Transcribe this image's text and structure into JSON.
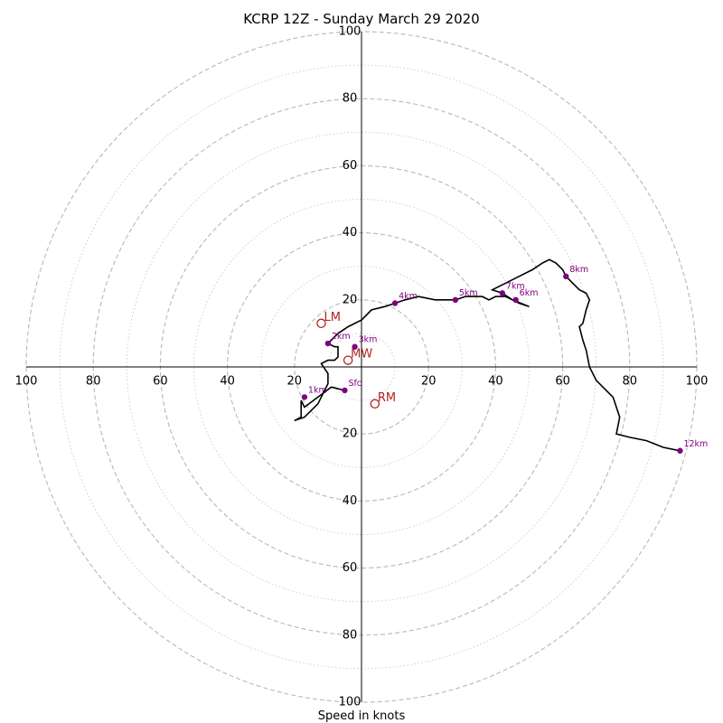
{
  "chart_data": {
    "type": "scatter",
    "subtype": "hodograph",
    "title": "KCRP 12Z - Sunday March 29 2020",
    "xlabel": "Speed in knots",
    "ylabel": "",
    "xlim": [
      -100,
      100
    ],
    "ylim": [
      -100,
      100
    ],
    "rings": {
      "major": [
        20,
        40,
        60,
        80,
        100
      ],
      "minor": [
        10,
        30,
        50,
        70,
        90
      ],
      "style": "dashed gray"
    },
    "tick_labels": {
      "x_left": [
        "100",
        "80",
        "60",
        "40",
        "20"
      ],
      "x_right": [
        "20",
        "40",
        "60",
        "80",
        "100"
      ],
      "y_up": [
        "20",
        "40",
        "60",
        "80",
        "100"
      ],
      "y_down": [
        "20",
        "40",
        "60",
        "80",
        "100"
      ]
    },
    "trace": {
      "color": "#000000",
      "points": [
        [
          -5,
          -7
        ],
        [
          -9,
          -6
        ],
        [
          -13,
          -9
        ],
        [
          -17,
          -12
        ],
        [
          -18,
          -10
        ],
        [
          -18,
          -15
        ],
        [
          -20,
          -16
        ],
        [
          -17,
          -15
        ],
        [
          -13,
          -11
        ],
        [
          -10,
          -5
        ],
        [
          -10,
          -2
        ],
        [
          -12,
          1
        ],
        [
          -10,
          2
        ],
        [
          -8,
          2
        ],
        [
          -7,
          3
        ],
        [
          -7,
          6
        ],
        [
          -8,
          6
        ],
        [
          -10,
          7
        ],
        [
          -9,
          8
        ],
        [
          -7,
          10
        ],
        [
          -4,
          12
        ],
        [
          0,
          14
        ],
        [
          3,
          17
        ],
        [
          7,
          18
        ],
        [
          10,
          19
        ],
        [
          13,
          20
        ],
        [
          17,
          21
        ],
        [
          22,
          20
        ],
        [
          23,
          20
        ],
        [
          25,
          20
        ],
        [
          28,
          20
        ],
        [
          31,
          21
        ],
        [
          33,
          21
        ],
        [
          36,
          21
        ],
        [
          38,
          20
        ],
        [
          40,
          21
        ],
        [
          43,
          21
        ],
        [
          45,
          20
        ],
        [
          47,
          19
        ],
        [
          50,
          18
        ],
        [
          45,
          20
        ],
        [
          42,
          22
        ],
        [
          39,
          23
        ],
        [
          43,
          25
        ],
        [
          47,
          27
        ],
        [
          51,
          29
        ],
        [
          54,
          31
        ],
        [
          56,
          32
        ],
        [
          58,
          31
        ],
        [
          60,
          29
        ],
        [
          61,
          27
        ],
        [
          63,
          25
        ],
        [
          65,
          23
        ],
        [
          67,
          22
        ],
        [
          68,
          20
        ],
        [
          67,
          17
        ],
        [
          66,
          13
        ],
        [
          65,
          12
        ],
        [
          66,
          8
        ],
        [
          67,
          5
        ],
        [
          68,
          0
        ],
        [
          70,
          -4
        ],
        [
          72,
          -6
        ],
        [
          75,
          -9
        ],
        [
          77,
          -15
        ],
        [
          76,
          -20
        ],
        [
          80,
          -21
        ],
        [
          85,
          -22
        ],
        [
          90,
          -24
        ],
        [
          95,
          -25
        ]
      ]
    },
    "height_markers": [
      {
        "label": "Sfc",
        "u": -5,
        "v": -7
      },
      {
        "label": "1km",
        "u": -17,
        "v": -9
      },
      {
        "label": "2km",
        "u": -10,
        "v": 7
      },
      {
        "label": "3km",
        "u": -2,
        "v": 6
      },
      {
        "label": "4km",
        "u": 10,
        "v": 19
      },
      {
        "label": "5km",
        "u": 28,
        "v": 20
      },
      {
        "label": "6km",
        "u": 46,
        "v": 20
      },
      {
        "label": "7km",
        "u": 42,
        "v": 22
      },
      {
        "label": "8km",
        "u": 61,
        "v": 27
      },
      {
        "label": "12km",
        "u": 95,
        "v": -25
      }
    ],
    "marker_color": "#800080",
    "storm_motion": [
      {
        "label": "LM",
        "u": -12,
        "v": 13
      },
      {
        "label": "MW",
        "u": -4,
        "v": 2
      },
      {
        "label": "RM",
        "u": 4,
        "v": -11
      }
    ],
    "storm_motion_color": "#b22222"
  }
}
